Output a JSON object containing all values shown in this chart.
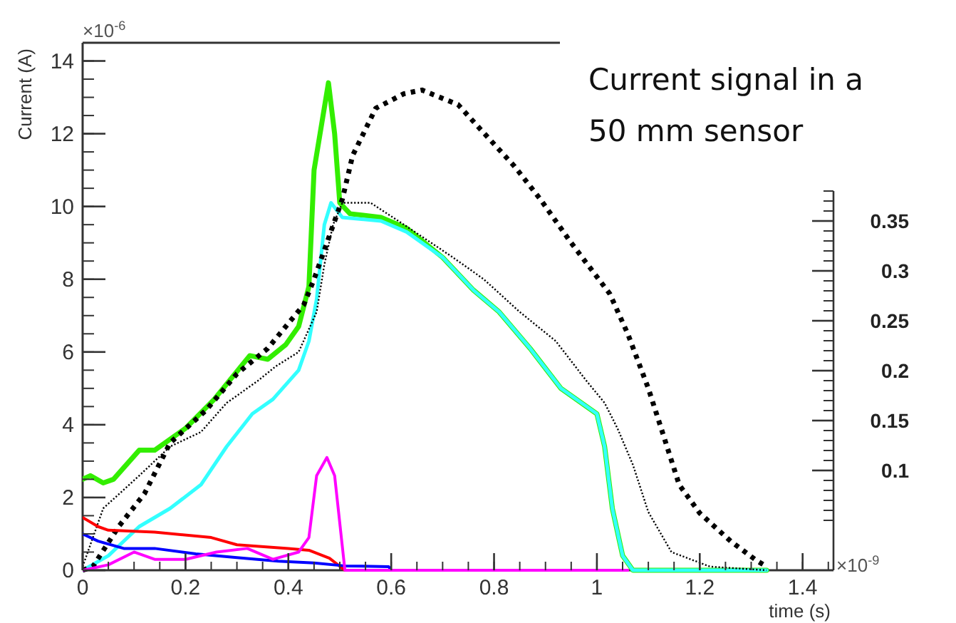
{
  "chart_data": {
    "type": "line",
    "title": "Current signal in a 50 mm sensor",
    "xlabel": "time (s)",
    "ylabel": "Current (A)",
    "annotations": [
      "×10$^{-6}$",
      "×10$^{-9}$"
    ],
    "xlim": [
      0,
      1.46
    ],
    "xticks": [
      0,
      0.2,
      0.4,
      0.6,
      0.8,
      1,
      1.2,
      1.4
    ],
    "ylim": [
      0,
      14.5
    ],
    "yticks": [
      0,
      2,
      4,
      6,
      8,
      10,
      12,
      14
    ],
    "y2lim": [
      0,
      0.38
    ],
    "y2ticks": [
      0.1,
      0.15,
      0.2,
      0.25,
      0.3,
      0.35
    ],
    "grid": false,
    "marker": "none",
    "series": [
      {
        "color": "#33ee00",
        "line_style": "solid",
        "x": [
          0,
          0.015,
          0.04,
          0.06,
          0.11,
          0.14,
          0.2,
          0.256,
          0.325,
          0.36,
          0.395,
          0.42,
          0.44,
          0.45,
          0.478,
          0.49,
          0.5,
          0.52,
          0.58,
          0.63,
          0.7,
          0.76,
          0.81,
          0.87,
          0.93,
          1,
          1.015,
          1.03,
          1.05,
          1.07,
          1.33
        ],
        "values": [
          2.5,
          2.6,
          2.4,
          2.5,
          3.3,
          3.3,
          3.9,
          4.7,
          5.9,
          5.8,
          6.2,
          6.7,
          7.8,
          11,
          13.4,
          12,
          10.1,
          9.8,
          9.7,
          9.4,
          8.6,
          7.7,
          7.1,
          6.1,
          5.0,
          4.3,
          3.4,
          1.7,
          0.4,
          0,
          0
        ]
      },
      {
        "color": "#33ffff",
        "line_style": "solid",
        "x": [
          0,
          0.05,
          0.11,
          0.17,
          0.23,
          0.28,
          0.33,
          0.37,
          0.42,
          0.44,
          0.455,
          0.47,
          0.483,
          0.505,
          0.58,
          0.63,
          0.7,
          0.76,
          0.81,
          0.87,
          0.93,
          1,
          1.015,
          1.03,
          1.05,
          1.07,
          1.33
        ],
        "values": [
          0,
          0.4,
          1.2,
          1.7,
          2.35,
          3.4,
          4.3,
          4.7,
          5.5,
          6.3,
          7.45,
          9.5,
          10.1,
          9.7,
          9.6,
          9.3,
          8.6,
          7.7,
          7.1,
          6.1,
          5.0,
          4.3,
          3.4,
          1.7,
          0.4,
          0,
          0
        ]
      },
      {
        "color": "#000000",
        "line_style": "dotted",
        "x": [
          0,
          0.02,
          0.07,
          0.12,
          0.17,
          0.24,
          0.3,
          0.36,
          0.43,
          0.45,
          0.505,
          0.525,
          0.57,
          0.625,
          0.66,
          0.73,
          0.775,
          0.84,
          0.89,
          0.95,
          1.025,
          1.06,
          1.1,
          1.125,
          1.16,
          1.2,
          1.26,
          1.31,
          1.33
        ],
        "values": [
          0,
          0.1,
          1.2,
          2.1,
          3.5,
          4.4,
          5.4,
          6.1,
          7.3,
          8.0,
          10.2,
          11.4,
          12.7,
          13.1,
          13.2,
          12.8,
          12.1,
          11.1,
          10.2,
          9.0,
          7.6,
          6.5,
          5.0,
          3.9,
          2.35,
          1.57,
          0.8,
          0.27,
          0.1
        ]
      },
      {
        "color": "#000000",
        "line_style": "dotted",
        "x": [
          0,
          0.04,
          0.11,
          0.17,
          0.23,
          0.28,
          0.34,
          0.375,
          0.42,
          0.455,
          0.47,
          0.487,
          0.505,
          0.56,
          0.625,
          0.72,
          0.78,
          0.85,
          0.92,
          0.98,
          1.015,
          1.04,
          1.07,
          1.1,
          1.145,
          1.22,
          1.33
        ],
        "values": [
          0.1,
          1.7,
          2.6,
          3.4,
          3.8,
          4.6,
          5.2,
          5.6,
          6.0,
          7.1,
          8.4,
          9.5,
          10.1,
          10.1,
          9.5,
          8.6,
          8.0,
          7.1,
          6.3,
          5.2,
          4.6,
          3.9,
          2.9,
          1.6,
          0.5,
          0.1,
          0
        ]
      },
      {
        "color": "#ff0000",
        "line_style": "solid",
        "x": [
          0,
          0.03,
          0.05,
          0.14,
          0.25,
          0.3,
          0.4,
          0.44,
          0.48,
          0.51
        ],
        "values": [
          1.45,
          1.2,
          1.1,
          1.05,
          0.9,
          0.7,
          0.6,
          0.55,
          0.33,
          0
        ]
      },
      {
        "color": "#0000ff",
        "line_style": "solid",
        "x": [
          0,
          0.03,
          0.08,
          0.14,
          0.22,
          0.3,
          0.38,
          0.45,
          0.51,
          0.595,
          0.6
        ],
        "values": [
          1.0,
          0.8,
          0.6,
          0.6,
          0.45,
          0.35,
          0.25,
          0.2,
          0.12,
          0.1,
          0
        ]
      },
      {
        "color": "#ff00ff",
        "line_style": "solid",
        "x": [
          0,
          0.05,
          0.1,
          0.14,
          0.2,
          0.26,
          0.32,
          0.37,
          0.42,
          0.44,
          0.455,
          0.475,
          0.49,
          0.51,
          1.06
        ],
        "values": [
          0,
          0.15,
          0.5,
          0.3,
          0.3,
          0.5,
          0.6,
          0.3,
          0.5,
          0.9,
          2.6,
          3.1,
          2.6,
          0,
          0
        ]
      }
    ]
  }
}
